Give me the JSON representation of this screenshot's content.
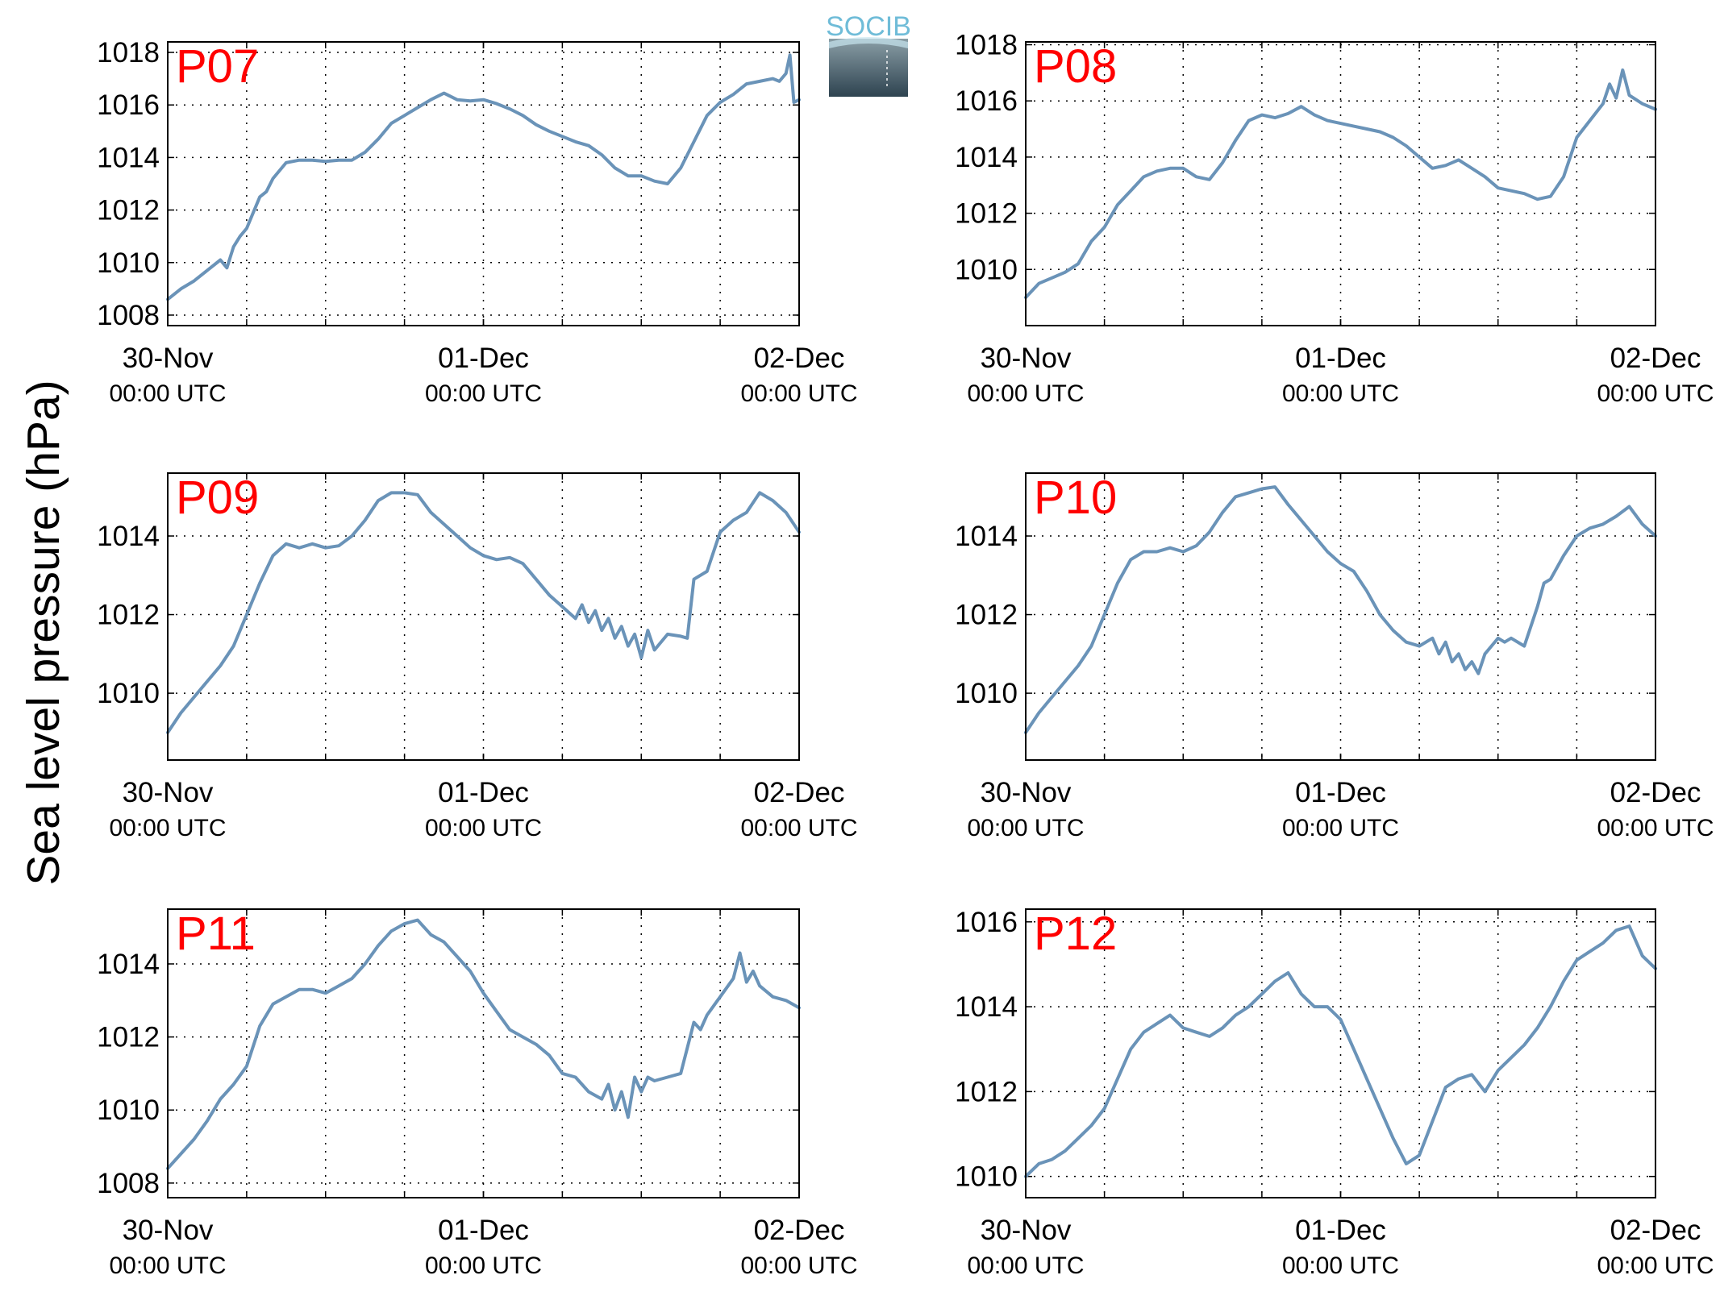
{
  "figure": {
    "ylabel": "Sea level pressure (hPa)",
    "logo_text": "SOCIB",
    "colors": {
      "line": "#6a93b8",
      "label": "#ff0000",
      "logo_text": "#6fbcd8",
      "logo_top": "#8a9ea6",
      "logo_bottom": "#2e4350"
    }
  },
  "chart_data": [
    {
      "type": "line",
      "label": "P07",
      "ylim": [
        1007.6,
        1018.4
      ],
      "yticks": [
        1008,
        1010,
        1012,
        1014,
        1016,
        1018
      ],
      "xlim": [
        0,
        48
      ],
      "xticks": [
        {
          "x": 0,
          "date": "30-Nov",
          "time": "00:00 UTC"
        },
        {
          "x": 24,
          "date": "01-Dec",
          "time": "00:00 UTC"
        },
        {
          "x": 48,
          "date": "02-Dec",
          "time": "00:00 UTC"
        }
      ],
      "x_gridlines": [
        6,
        12,
        18,
        24,
        30,
        36,
        42
      ],
      "x": [
        0,
        1,
        2,
        3,
        4,
        4.5,
        5,
        5.5,
        6,
        6.5,
        7,
        7.5,
        8,
        9,
        10,
        11,
        12,
        13,
        14,
        15,
        16,
        17,
        18,
        19,
        20,
        21,
        22,
        23,
        24,
        25,
        26,
        27,
        28,
        29,
        30,
        31,
        32,
        33,
        34,
        35,
        36,
        37,
        38,
        39,
        40,
        41,
        42,
        43,
        44,
        45,
        46,
        46.5,
        47,
        47.3,
        47.6,
        48
      ],
      "y": [
        1008.6,
        1009.0,
        1009.3,
        1009.7,
        1010.1,
        1009.8,
        1010.6,
        1011.0,
        1011.3,
        1011.9,
        1012.5,
        1012.7,
        1013.2,
        1013.8,
        1013.9,
        1013.9,
        1013.85,
        1013.9,
        1013.9,
        1014.2,
        1014.7,
        1015.3,
        1015.6,
        1015.9,
        1016.2,
        1016.45,
        1016.2,
        1016.15,
        1016.2,
        1016.05,
        1015.85,
        1015.6,
        1015.25,
        1015.0,
        1014.8,
        1014.6,
        1014.45,
        1014.1,
        1013.6,
        1013.3,
        1013.3,
        1013.1,
        1013.0,
        1013.6,
        1014.6,
        1015.6,
        1016.1,
        1016.4,
        1016.8,
        1016.9,
        1017.0,
        1016.9,
        1017.2,
        1017.9,
        1016.1,
        1016.2
      ]
    },
    {
      "type": "line",
      "label": "P08",
      "ylim": [
        1008.0,
        1018.1
      ],
      "yticks": [
        1010,
        1012,
        1014,
        1016,
        1018
      ],
      "xlim": [
        0,
        48
      ],
      "xticks": [
        {
          "x": 0,
          "date": "30-Nov",
          "time": "00:00 UTC"
        },
        {
          "x": 24,
          "date": "01-Dec",
          "time": "00:00 UTC"
        },
        {
          "x": 48,
          "date": "02-Dec",
          "time": "00:00 UTC"
        }
      ],
      "x_gridlines": [
        6,
        12,
        18,
        24,
        30,
        36,
        42
      ],
      "x": [
        0,
        1,
        2,
        3,
        4,
        5,
        6,
        7,
        8,
        9,
        10,
        11,
        12,
        13,
        14,
        15,
        16,
        17,
        18,
        19,
        20,
        21,
        22,
        23,
        24,
        25,
        26,
        27,
        28,
        29,
        30,
        31,
        32,
        33,
        34,
        35,
        36,
        37,
        38,
        39,
        40,
        41,
        42,
        43,
        44,
        44.5,
        45,
        45.5,
        46,
        47,
        48
      ],
      "y": [
        1009.0,
        1009.5,
        1009.7,
        1009.9,
        1010.2,
        1011.0,
        1011.5,
        1012.3,
        1012.8,
        1013.3,
        1013.5,
        1013.6,
        1013.6,
        1013.3,
        1013.2,
        1013.8,
        1014.6,
        1015.3,
        1015.5,
        1015.4,
        1015.55,
        1015.8,
        1015.5,
        1015.3,
        1015.2,
        1015.1,
        1015.0,
        1014.9,
        1014.7,
        1014.4,
        1014.0,
        1013.6,
        1013.7,
        1013.9,
        1013.6,
        1013.3,
        1012.9,
        1012.8,
        1012.7,
        1012.5,
        1012.6,
        1013.3,
        1014.7,
        1015.3,
        1015.9,
        1016.6,
        1016.1,
        1017.1,
        1016.2,
        1015.9,
        1015.7
      ]
    },
    {
      "type": "line",
      "label": "P09",
      "ylim": [
        1008.3,
        1015.6
      ],
      "yticks": [
        1010,
        1012,
        1014
      ],
      "xlim": [
        0,
        48
      ],
      "xticks": [
        {
          "x": 0,
          "date": "30-Nov",
          "time": "00:00 UTC"
        },
        {
          "x": 24,
          "date": "01-Dec",
          "time": "00:00 UTC"
        },
        {
          "x": 48,
          "date": "02-Dec",
          "time": "00:00 UTC"
        }
      ],
      "x_gridlines": [
        6,
        12,
        18,
        24,
        30,
        36,
        42
      ],
      "x": [
        0,
        1,
        2,
        3,
        4,
        5,
        6,
        7,
        8,
        9,
        10,
        11,
        12,
        13,
        14,
        15,
        16,
        17,
        18,
        19,
        20,
        21,
        22,
        23,
        24,
        25,
        26,
        27,
        28,
        29,
        30,
        31,
        31.5,
        32,
        32.5,
        33,
        33.5,
        34,
        34.5,
        35,
        35.5,
        36,
        36.5,
        37,
        38,
        39,
        39.5,
        40,
        41,
        42,
        43,
        44,
        45,
        46,
        47,
        48
      ],
      "y": [
        1009.0,
        1009.5,
        1009.9,
        1010.3,
        1010.7,
        1011.2,
        1012.0,
        1012.8,
        1013.5,
        1013.8,
        1013.7,
        1013.8,
        1013.7,
        1013.75,
        1014.0,
        1014.4,
        1014.9,
        1015.1,
        1015.1,
        1015.05,
        1014.6,
        1014.3,
        1014.0,
        1013.7,
        1013.5,
        1013.4,
        1013.45,
        1013.3,
        1012.9,
        1012.5,
        1012.2,
        1011.9,
        1012.25,
        1011.8,
        1012.1,
        1011.6,
        1011.9,
        1011.4,
        1011.7,
        1011.2,
        1011.5,
        1010.9,
        1011.6,
        1011.1,
        1011.5,
        1011.45,
        1011.4,
        1012.9,
        1013.1,
        1014.1,
        1014.4,
        1014.6,
        1015.1,
        1014.9,
        1014.6,
        1014.1
      ]
    },
    {
      "type": "line",
      "label": "P10",
      "ylim": [
        1008.3,
        1015.6
      ],
      "yticks": [
        1010,
        1012,
        1014
      ],
      "xlim": [
        0,
        48
      ],
      "xticks": [
        {
          "x": 0,
          "date": "30-Nov",
          "time": "00:00 UTC"
        },
        {
          "x": 24,
          "date": "01-Dec",
          "time": "00:00 UTC"
        },
        {
          "x": 48,
          "date": "02-Dec",
          "time": "00:00 UTC"
        }
      ],
      "x_gridlines": [
        6,
        12,
        18,
        24,
        30,
        36,
        42
      ],
      "x": [
        0,
        1,
        2,
        3,
        4,
        5,
        6,
        7,
        8,
        9,
        10,
        11,
        12,
        13,
        14,
        15,
        16,
        17,
        18,
        19,
        20,
        21,
        22,
        23,
        24,
        25,
        26,
        27,
        28,
        29,
        30,
        31,
        31.5,
        32,
        32.5,
        33,
        33.5,
        34,
        34.5,
        35,
        35.5,
        36,
        36.5,
        37,
        38,
        39,
        39.5,
        40,
        41,
        42,
        43,
        44,
        45,
        46,
        47,
        48
      ],
      "y": [
        1009.0,
        1009.5,
        1009.9,
        1010.3,
        1010.7,
        1011.2,
        1012.0,
        1012.8,
        1013.4,
        1013.6,
        1013.6,
        1013.7,
        1013.6,
        1013.75,
        1014.1,
        1014.6,
        1015.0,
        1015.1,
        1015.2,
        1015.25,
        1014.8,
        1014.4,
        1014.0,
        1013.6,
        1013.3,
        1013.1,
        1012.6,
        1012.0,
        1011.6,
        1011.3,
        1011.2,
        1011.4,
        1011.0,
        1011.3,
        1010.8,
        1011.0,
        1010.6,
        1010.8,
        1010.5,
        1011.0,
        1011.2,
        1011.4,
        1011.3,
        1011.4,
        1011.2,
        1012.2,
        1012.8,
        1012.9,
        1013.5,
        1014.0,
        1014.2,
        1014.3,
        1014.5,
        1014.75,
        1014.3,
        1014.0
      ]
    },
    {
      "type": "line",
      "label": "P11",
      "ylim": [
        1007.6,
        1015.5
      ],
      "yticks": [
        1008,
        1010,
        1012,
        1014
      ],
      "xlim": [
        0,
        48
      ],
      "xticks": [
        {
          "x": 0,
          "date": "30-Nov",
          "time": "00:00 UTC"
        },
        {
          "x": 24,
          "date": "01-Dec",
          "time": "00:00 UTC"
        },
        {
          "x": 48,
          "date": "02-Dec",
          "time": "00:00 UTC"
        }
      ],
      "x_gridlines": [
        6,
        12,
        18,
        24,
        30,
        36,
        42
      ],
      "x": [
        0,
        1,
        2,
        3,
        4,
        5,
        6,
        7,
        8,
        9,
        10,
        11,
        12,
        13,
        14,
        15,
        16,
        17,
        18,
        19,
        20,
        21,
        22,
        23,
        24,
        25,
        26,
        27,
        28,
        29,
        30,
        31,
        32,
        33,
        33.5,
        34,
        34.5,
        35,
        35.5,
        36,
        36.5,
        37,
        38,
        39,
        40,
        40.5,
        41,
        42,
        43,
        43.5,
        44,
        44.5,
        45,
        46,
        47,
        48
      ],
      "y": [
        1008.4,
        1008.8,
        1009.2,
        1009.7,
        1010.3,
        1010.7,
        1011.2,
        1012.3,
        1012.9,
        1013.1,
        1013.3,
        1013.3,
        1013.2,
        1013.4,
        1013.6,
        1014.0,
        1014.5,
        1014.9,
        1015.1,
        1015.2,
        1014.8,
        1014.6,
        1014.2,
        1013.8,
        1013.2,
        1012.7,
        1012.2,
        1012.0,
        1011.8,
        1011.5,
        1011.0,
        1010.9,
        1010.5,
        1010.3,
        1010.7,
        1010.0,
        1010.5,
        1009.8,
        1010.9,
        1010.5,
        1010.9,
        1010.8,
        1010.9,
        1011.0,
        1012.4,
        1012.2,
        1012.6,
        1013.1,
        1013.6,
        1014.3,
        1013.5,
        1013.8,
        1013.4,
        1013.1,
        1013.0,
        1012.8
      ]
    },
    {
      "type": "line",
      "label": "P12",
      "ylim": [
        1009.5,
        1016.3
      ],
      "yticks": [
        1010,
        1012,
        1014,
        1016
      ],
      "xlim": [
        0,
        48
      ],
      "xticks": [
        {
          "x": 0,
          "date": "30-Nov",
          "time": "00:00 UTC"
        },
        {
          "x": 24,
          "date": "01-Dec",
          "time": "00:00 UTC"
        },
        {
          "x": 48,
          "date": "02-Dec",
          "time": "00:00 UTC"
        }
      ],
      "x_gridlines": [
        6,
        12,
        18,
        24,
        30,
        36,
        42
      ],
      "x": [
        0,
        1,
        2,
        3,
        4,
        5,
        6,
        7,
        8,
        9,
        10,
        11,
        12,
        13,
        14,
        15,
        16,
        17,
        18,
        19,
        20,
        21,
        22,
        23,
        24,
        25,
        26,
        27,
        28,
        29,
        30,
        31,
        32,
        33,
        34,
        35,
        36,
        37,
        38,
        39,
        40,
        41,
        42,
        43,
        44,
        45,
        46,
        47,
        48
      ],
      "y": [
        1010.0,
        1010.3,
        1010.4,
        1010.6,
        1010.9,
        1011.2,
        1011.6,
        1012.3,
        1013.0,
        1013.4,
        1013.6,
        1013.8,
        1013.5,
        1013.4,
        1013.3,
        1013.5,
        1013.8,
        1014.0,
        1014.3,
        1014.6,
        1014.8,
        1014.3,
        1014.0,
        1014.0,
        1013.7,
        1013.0,
        1012.3,
        1011.6,
        1010.9,
        1010.3,
        1010.5,
        1011.3,
        1012.1,
        1012.3,
        1012.4,
        1012.0,
        1012.5,
        1012.8,
        1013.1,
        1013.5,
        1014.0,
        1014.6,
        1015.1,
        1015.3,
        1015.5,
        1015.8,
        1015.9,
        1015.2,
        1014.9
      ]
    }
  ]
}
